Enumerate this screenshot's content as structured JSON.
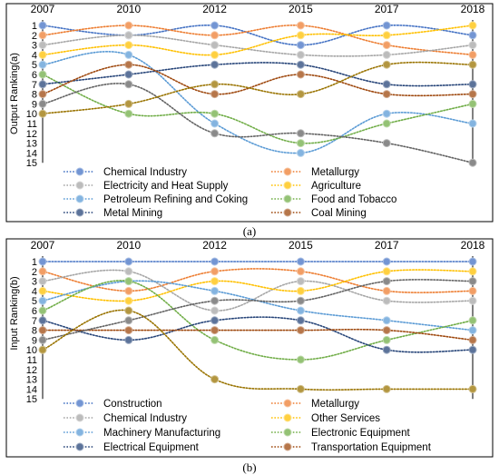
{
  "panels": {
    "a": {
      "caption": "(a)"
    },
    "b": {
      "caption": "(b)"
    }
  },
  "chart_data": [
    {
      "type": "line",
      "panel": "a",
      "ylabel": "Output Ranking(a)",
      "x": [
        "2007",
        "2010",
        "2012",
        "2015",
        "2017",
        "2018"
      ],
      "ylim": [
        1,
        15
      ],
      "y_inverted": true,
      "y_ticks": [
        1,
        2,
        3,
        4,
        5,
        6,
        7,
        8,
        9,
        10,
        11,
        12,
        13,
        14,
        15
      ],
      "legend": "bottom",
      "series": [
        {
          "name": "Chemical Industry",
          "color": "#4472C4",
          "values": [
            1,
            2,
            1,
            3,
            1,
            2
          ]
        },
        {
          "name": "Metallurgy",
          "color": "#ED7D31",
          "values": [
            2,
            1,
            2,
            1,
            3,
            4
          ]
        },
        {
          "name": "Electricity and Heat Supply",
          "color": "#A5A5A5",
          "values": [
            3,
            2,
            3,
            4,
            4,
            3
          ]
        },
        {
          "name": "Agriculture",
          "color": "#FFC000",
          "values": [
            4,
            3,
            4,
            2,
            2,
            1
          ]
        },
        {
          "name": "Petroleum Refining and Coking",
          "color": "#5B9BD5",
          "values": [
            5,
            4,
            11,
            14,
            10,
            11
          ]
        },
        {
          "name": "Food and Tobacco",
          "color": "#70AD47",
          "values": [
            6,
            10,
            10,
            13,
            11,
            9
          ]
        },
        {
          "name": "Metal Mining",
          "color": "#264478",
          "values": [
            7,
            6,
            5,
            5,
            7,
            7
          ]
        },
        {
          "name": "Coal Mining",
          "color": "#9E480E",
          "values": [
            8,
            5,
            8,
            6,
            8,
            8
          ]
        },
        {
          "name": "",
          "color": "#636363",
          "values": [
            9,
            7,
            12,
            12,
            13,
            15
          ]
        },
        {
          "name": "",
          "color": "#997300",
          "values": [
            10,
            9,
            7,
            8,
            5,
            5
          ]
        }
      ]
    },
    {
      "type": "line",
      "panel": "b",
      "ylabel": "Input Ranking(b)",
      "x": [
        "2007",
        "2010",
        "2012",
        "2015",
        "2017",
        "2018"
      ],
      "ylim": [
        1,
        15
      ],
      "y_inverted": true,
      "y_ticks": [
        1,
        2,
        3,
        4,
        5,
        6,
        7,
        8,
        9,
        10,
        11,
        12,
        13,
        14,
        15
      ],
      "legend": "bottom",
      "series": [
        {
          "name": "Construction",
          "color": "#4472C4",
          "values": [
            1,
            1,
            1,
            1,
            1,
            1
          ]
        },
        {
          "name": "Metallurgy",
          "color": "#ED7D31",
          "values": [
            2,
            4,
            2,
            2,
            4,
            4
          ]
        },
        {
          "name": "Chemical Industry",
          "color": "#A5A5A5",
          "values": [
            3,
            2,
            6,
            3,
            5,
            5
          ]
        },
        {
          "name": "Other Services",
          "color": "#FFC000",
          "values": [
            4,
            5,
            3,
            4,
            2,
            2
          ]
        },
        {
          "name": "Machinery Manufacturing",
          "color": "#5B9BD5",
          "values": [
            5,
            3,
            4,
            6,
            7,
            8
          ]
        },
        {
          "name": "Electronic Equipment",
          "color": "#70AD47",
          "values": [
            6,
            3,
            9,
            11,
            9,
            7
          ]
        },
        {
          "name": "Electrical Equipment",
          "color": "#264478",
          "values": [
            7,
            9,
            7,
            7,
            10,
            10
          ]
        },
        {
          "name": "Transportation Equipment",
          "color": "#9E480E",
          "values": [
            8,
            8,
            8,
            8,
            8,
            9
          ]
        },
        {
          "name": "",
          "color": "#636363",
          "values": [
            9,
            7,
            5,
            5,
            3,
            3
          ]
        },
        {
          "name": "",
          "color": "#997300",
          "values": [
            10,
            6,
            13,
            14,
            14,
            14
          ]
        }
      ]
    }
  ]
}
